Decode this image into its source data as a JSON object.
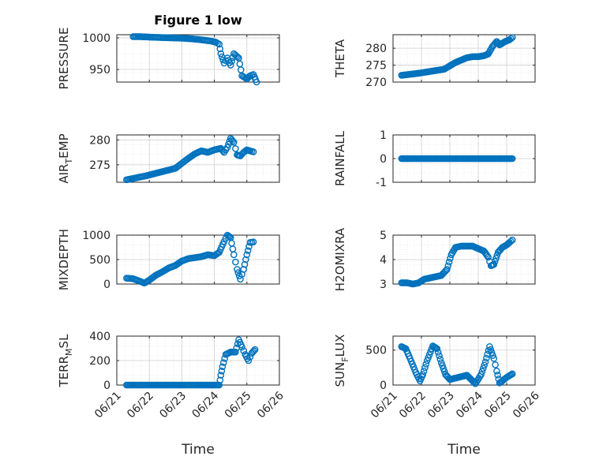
{
  "figure": {
    "title": "Figure 1 low"
  },
  "colors": {
    "marker": "#0072BD",
    "axis": "#262626",
    "grid": "#cfcfcf",
    "minor_grid": "#e6e6e6"
  },
  "chart_data": [
    {
      "type": "scatter",
      "ylabel": "PRESSURE",
      "ylabel_sub": "",
      "ylabel_after": "",
      "xlabel": "",
      "ylim": [
        930,
        1005
      ],
      "yticks": [
        950,
        1000
      ],
      "ytick_labels": [
        "950",
        "1000"
      ],
      "xtick_labels": [],
      "grid": true,
      "marker": "circle",
      "series": [
        {
          "points": [
            [
              21.5,
              1002
            ],
            [
              21.7,
              1002
            ],
            [
              21.9,
              1001.5
            ],
            [
              22.1,
              1001
            ],
            [
              22.4,
              1000.5
            ],
            [
              22.7,
              1000
            ],
            [
              23.0,
              999.5
            ],
            [
              23.3,
              998.5
            ],
            [
              23.6,
              997
            ],
            [
              23.9,
              995
            ],
            [
              24.05,
              993
            ],
            [
              24.15,
              990
            ],
            [
              24.2,
              975
            ],
            [
              24.3,
              960
            ],
            [
              24.4,
              968
            ],
            [
              24.5,
              957
            ],
            [
              24.6,
              975
            ],
            [
              24.75,
              968
            ],
            [
              24.85,
              940
            ],
            [
              25.0,
              935
            ],
            [
              25.1,
              940
            ],
            [
              25.2,
              942
            ],
            [
              25.3,
              930
            ]
          ]
        }
      ]
    },
    {
      "type": "scatter",
      "ylabel": "THETA",
      "ylabel_sub": "",
      "ylabel_after": "",
      "xlabel": "",
      "ylim": [
        270,
        284
      ],
      "yticks": [
        270,
        275,
        280
      ],
      "ytick_labels": [
        "270",
        "275",
        "280"
      ],
      "xtick_labels": [],
      "grid": true,
      "marker": "circle",
      "series": [
        {
          "points": [
            [
              21.3,
              272
            ],
            [
              21.6,
              272.3
            ],
            [
              21.9,
              272.6
            ],
            [
              22.2,
              273
            ],
            [
              22.5,
              273.4
            ],
            [
              22.8,
              273.8
            ],
            [
              23.0,
              274.8
            ],
            [
              23.2,
              275.8
            ],
            [
              23.4,
              276.5
            ],
            [
              23.6,
              277.2
            ],
            [
              23.8,
              277.5
            ],
            [
              24.0,
              277.5
            ],
            [
              24.2,
              277.8
            ],
            [
              24.35,
              278.3
            ],
            [
              24.5,
              280.5
            ],
            [
              24.65,
              282
            ],
            [
              24.75,
              281
            ],
            [
              24.85,
              281.5
            ],
            [
              24.95,
              282
            ],
            [
              25.1,
              282.5
            ],
            [
              25.2,
              283.2
            ]
          ]
        }
      ]
    },
    {
      "type": "scatter",
      "ylabel": "AIR",
      "ylabel_sub": "T",
      "ylabel_after": "EMP",
      "xlabel": "",
      "ylim": [
        271.5,
        281
      ],
      "yticks": [
        275,
        280
      ],
      "ytick_labels": [
        "275",
        "280"
      ],
      "xtick_labels": [],
      "grid": true,
      "marker": "circle",
      "series": [
        {
          "points": [
            [
              21.3,
              272
            ],
            [
              21.6,
              272.4
            ],
            [
              21.9,
              272.8
            ],
            [
              22.2,
              273.3
            ],
            [
              22.5,
              273.8
            ],
            [
              22.8,
              274.3
            ],
            [
              23.0,
              275.3
            ],
            [
              23.2,
              276.3
            ],
            [
              23.4,
              277.2
            ],
            [
              23.6,
              277.8
            ],
            [
              23.8,
              277.5
            ],
            [
              24.0,
              278
            ],
            [
              24.2,
              278.3
            ],
            [
              24.3,
              277.5
            ],
            [
              24.4,
              278.5
            ],
            [
              24.5,
              280.3
            ],
            [
              24.6,
              279.5
            ],
            [
              24.7,
              277
            ],
            [
              24.8,
              276.8
            ],
            [
              24.9,
              277.5
            ],
            [
              25.0,
              278
            ],
            [
              25.1,
              277.8
            ],
            [
              25.2,
              277.6
            ]
          ]
        }
      ]
    },
    {
      "type": "scatter",
      "ylabel": "RAINFALL",
      "ylabel_sub": "",
      "ylabel_after": "",
      "xlabel": "",
      "ylim": [
        -1,
        1
      ],
      "yticks": [
        -1,
        0,
        1
      ],
      "ytick_labels": [
        "-1",
        "0",
        "1"
      ],
      "xtick_labels": [],
      "grid": true,
      "marker": "circle",
      "series": [
        {
          "points": [
            [
              21.3,
              0
            ],
            [
              21.6,
              0
            ],
            [
              21.9,
              0
            ],
            [
              22.2,
              0
            ],
            [
              22.5,
              0
            ],
            [
              22.8,
              0
            ],
            [
              23.1,
              0
            ],
            [
              23.4,
              0
            ],
            [
              23.7,
              0
            ],
            [
              24.0,
              0
            ],
            [
              24.3,
              0
            ],
            [
              24.6,
              0
            ],
            [
              24.9,
              0
            ],
            [
              25.2,
              0
            ]
          ]
        }
      ]
    },
    {
      "type": "scatter",
      "ylabel": "MIXDEPTH",
      "ylabel_sub": "",
      "ylabel_after": "",
      "xlabel": "",
      "ylim": [
        0,
        1000
      ],
      "yticks": [
        0,
        500,
        1000
      ],
      "ytick_labels": [
        "0",
        "500",
        "1000"
      ],
      "xtick_labels": [],
      "grid": true,
      "marker": "circle",
      "series": [
        {
          "points": [
            [
              21.3,
              120
            ],
            [
              21.5,
              110
            ],
            [
              21.7,
              60
            ],
            [
              21.85,
              20
            ],
            [
              22.0,
              80
            ],
            [
              22.2,
              180
            ],
            [
              22.4,
              250
            ],
            [
              22.6,
              330
            ],
            [
              22.8,
              380
            ],
            [
              23.0,
              470
            ],
            [
              23.2,
              520
            ],
            [
              23.4,
              540
            ],
            [
              23.6,
              560
            ],
            [
              23.8,
              600
            ],
            [
              24.0,
              580
            ],
            [
              24.15,
              650
            ],
            [
              24.3,
              870
            ],
            [
              24.4,
              1000
            ],
            [
              24.5,
              950
            ],
            [
              24.6,
              600
            ],
            [
              24.7,
              300
            ],
            [
              24.8,
              100
            ],
            [
              24.9,
              300
            ],
            [
              25.0,
              600
            ],
            [
              25.1,
              850
            ],
            [
              25.2,
              860
            ]
          ]
        }
      ]
    },
    {
      "type": "scatter",
      "ylabel": "H2OMIXRA",
      "ylabel_sub": "",
      "ylabel_after": "",
      "xlabel": "",
      "ylim": [
        3,
        5
      ],
      "yticks": [
        3,
        4,
        5
      ],
      "ytick_labels": [
        "3",
        "4",
        "5"
      ],
      "xtick_labels": [],
      "grid": true,
      "marker": "circle",
      "series": [
        {
          "points": [
            [
              21.3,
              3.05
            ],
            [
              21.5,
              3.05
            ],
            [
              21.7,
              3.0
            ],
            [
              21.9,
              3.05
            ],
            [
              22.1,
              3.2
            ],
            [
              22.3,
              3.25
            ],
            [
              22.5,
              3.3
            ],
            [
              22.7,
              3.35
            ],
            [
              22.9,
              3.6
            ],
            [
              23.05,
              4.2
            ],
            [
              23.2,
              4.5
            ],
            [
              23.4,
              4.55
            ],
            [
              23.6,
              4.55
            ],
            [
              23.8,
              4.55
            ],
            [
              24.0,
              4.45
            ],
            [
              24.2,
              4.35
            ],
            [
              24.35,
              4.1
            ],
            [
              24.45,
              3.75
            ],
            [
              24.55,
              3.8
            ],
            [
              24.7,
              4.3
            ],
            [
              24.85,
              4.5
            ],
            [
              25.0,
              4.6
            ],
            [
              25.1,
              4.7
            ],
            [
              25.2,
              4.8
            ]
          ]
        }
      ]
    },
    {
      "type": "scatter",
      "ylabel": "TERR",
      "ylabel_sub": "M",
      "ylabel_after": "SL",
      "xlabel": "Time",
      "ylim": [
        0,
        400
      ],
      "yticks": [
        0,
        200,
        400
      ],
      "ytick_labels": [
        "0",
        "200",
        "400"
      ],
      "xtick_labels": [
        "06/21",
        "06/22",
        "06/23",
        "06/24",
        "06/25",
        "06/26"
      ],
      "grid": true,
      "marker": "circle",
      "series": [
        {
          "points": [
            [
              21.3,
              0
            ],
            [
              21.6,
              0
            ],
            [
              21.9,
              0
            ],
            [
              22.2,
              0
            ],
            [
              22.5,
              0
            ],
            [
              22.8,
              0
            ],
            [
              23.1,
              0
            ],
            [
              23.4,
              0
            ],
            [
              23.7,
              0
            ],
            [
              24.0,
              0
            ],
            [
              24.15,
              0
            ],
            [
              24.2,
              80
            ],
            [
              24.25,
              150
            ],
            [
              24.35,
              250
            ],
            [
              24.5,
              270
            ],
            [
              24.65,
              270
            ],
            [
              24.75,
              370
            ],
            [
              24.85,
              310
            ],
            [
              24.95,
              250
            ],
            [
              25.05,
              200
            ],
            [
              25.15,
              260
            ],
            [
              25.25,
              290
            ]
          ]
        }
      ]
    },
    {
      "type": "scatter",
      "ylabel": "SUN",
      "ylabel_sub": "F",
      "ylabel_after": "LUX",
      "xlabel": "Time",
      "ylim": [
        0,
        700
      ],
      "yticks": [
        0,
        500
      ],
      "ytick_labels": [
        "0",
        "500"
      ],
      "xtick_labels": [
        "06/21",
        "06/22",
        "06/23",
        "06/24",
        "06/25",
        "06/26"
      ],
      "grid": true,
      "marker": "circle",
      "series": [
        {
          "points": [
            [
              21.3,
              550
            ],
            [
              21.45,
              520
            ],
            [
              21.6,
              380
            ],
            [
              21.8,
              180
            ],
            [
              21.95,
              60
            ],
            [
              22.05,
              150
            ],
            [
              22.2,
              350
            ],
            [
              22.4,
              560
            ],
            [
              22.55,
              520
            ],
            [
              22.7,
              320
            ],
            [
              22.85,
              150
            ],
            [
              23.0,
              80
            ],
            [
              23.2,
              100
            ],
            [
              23.4,
              120
            ],
            [
              23.6,
              140
            ],
            [
              23.75,
              80
            ],
            [
              23.9,
              20
            ],
            [
              24.1,
              150
            ],
            [
              24.25,
              330
            ],
            [
              24.4,
              550
            ],
            [
              24.55,
              380
            ],
            [
              24.65,
              200
            ],
            [
              24.75,
              30
            ],
            [
              24.85,
              60
            ],
            [
              25.0,
              110
            ],
            [
              25.2,
              160
            ]
          ]
        }
      ]
    }
  ]
}
